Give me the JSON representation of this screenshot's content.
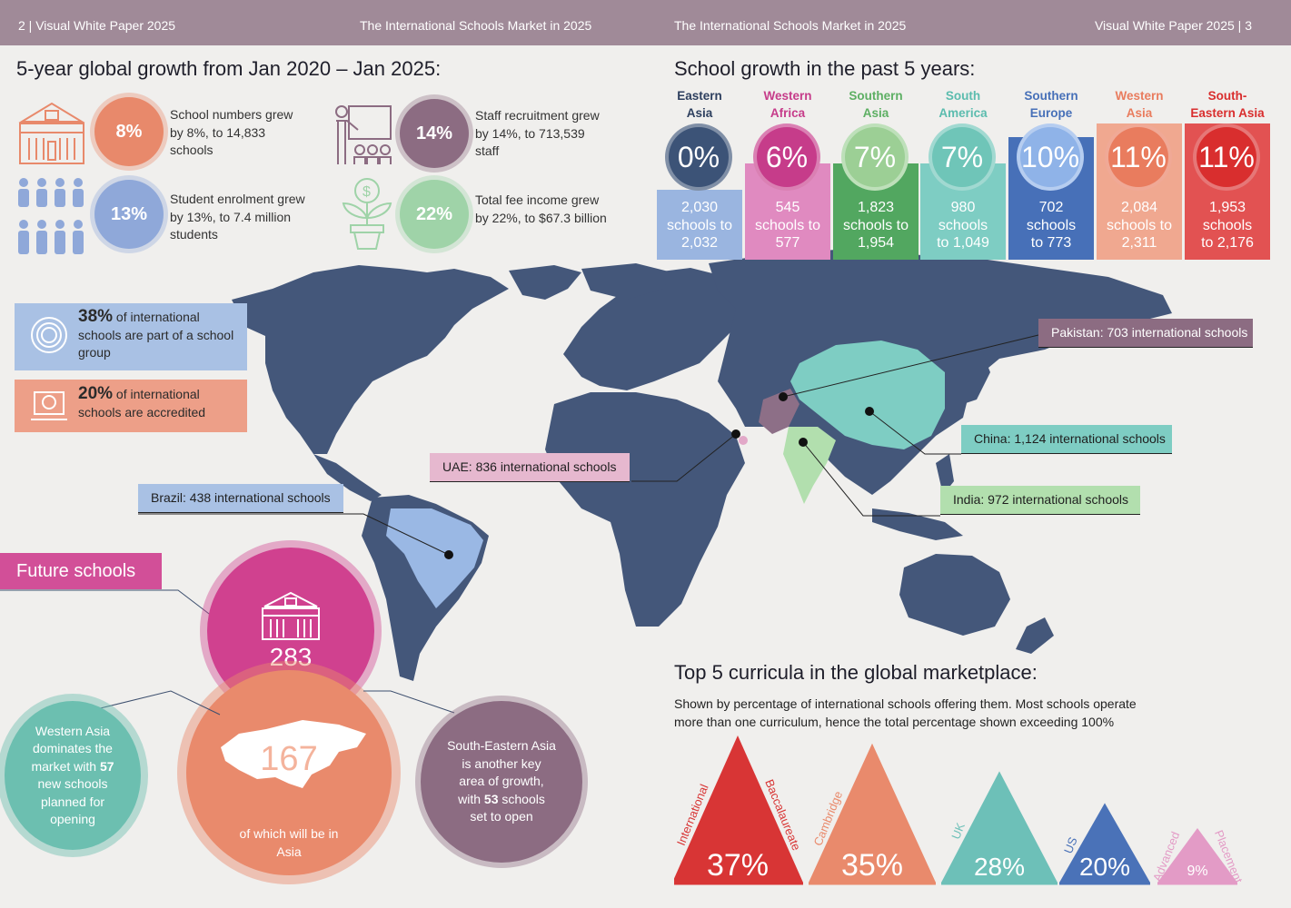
{
  "header": {
    "left": "2 | Visual White Paper 2025",
    "center_left": "The International Schools Market in 2025",
    "center_right": "The International Schools Market in 2025",
    "right": "Visual White Paper 2025 | 3"
  },
  "growth": {
    "title": "5-year global growth from Jan 2020 – Jan 2025:",
    "items": [
      {
        "icon": "school-building-icon",
        "pct": "8%",
        "text": "School numbers grew by 8%, to 14,833 schools",
        "color": "#e8896b"
      },
      {
        "icon": "students-group-icon",
        "pct": "13%",
        "text": "Student enrolment grew by 13%, to 7.4 million students",
        "color": "#8fa8d9"
      },
      {
        "icon": "teacher-board-icon",
        "pct": "14%",
        "text": "Staff recruitment grew by 14%, to 713,539 staff",
        "color": "#8c6c82"
      },
      {
        "icon": "money-plant-icon",
        "pct": "22%",
        "text": "Total fee income grew by 22%, to $67.3 billion",
        "color": "#9fd3a8"
      }
    ]
  },
  "regions_section": {
    "title": "School growth in the past 5 years:",
    "regions": [
      {
        "name_line1": "Eastern",
        "name_line2": "Asia",
        "pct": "0%",
        "l1": "2,030",
        "l2": "schools to",
        "l3": "2,032",
        "color": "#3c5377",
        "box": "#9ab5e0",
        "name_color": "#2d3f5e"
      },
      {
        "name_line1": "Western",
        "name_line2": "Africa",
        "pct": "6%",
        "l1": "545",
        "l2": "schools to",
        "l3": "577",
        "color": "#c63c8a",
        "box": "#e08ac0",
        "name_color": "#c63c8a"
      },
      {
        "name_line1": "Southern",
        "name_line2": "Asia",
        "pct": "7%",
        "l1": "1,823",
        "l2": "schools to",
        "l3": "1,954",
        "color": "#9ccf95",
        "box": "#52a760",
        "name_color": "#5daf63"
      },
      {
        "name_line1": "South",
        "name_line2": "America",
        "pct": "7%",
        "l1": "980",
        "l2": "schools",
        "l3": "to 1,049",
        "color": "#6fc5b8",
        "box": "#7ecdc3",
        "name_color": "#5bbcae"
      },
      {
        "name_line1": "Southern",
        "name_line2": "Europe",
        "pct": "10%",
        "l1": "702",
        "l2": "schools",
        "l3": "to 773",
        "color": "#8fb3e8",
        "box": "#4770b8",
        "name_color": "#4770b8"
      },
      {
        "name_line1": "Western",
        "name_line2": "Asia",
        "pct": "11%",
        "l1": "2,084",
        "l2": "schools to",
        "l3": "2,311",
        "color": "#e97c5e",
        "box": "#f0a890",
        "name_color": "#e97c5e"
      },
      {
        "name_line1": "South-",
        "name_line2": "Eastern Asia",
        "pct": "11%",
        "l1": "1,953",
        "l2": "schools",
        "l3": "to 2,176",
        "color": "#d92e2e",
        "box": "#e25252",
        "name_color": "#d92e2e"
      }
    ]
  },
  "facts": [
    {
      "icon": "lifebuoy-icon",
      "bold": "38%",
      "text": " of international schools are part of a school group",
      "color": "#a9c1e4"
    },
    {
      "icon": "award-laptop-icon",
      "bold": "20%",
      "text": " of international schools are accredited",
      "color": "#ed9f88"
    }
  ],
  "map_callouts": {
    "pakistan": "Pakistan: 703 international schools",
    "china": "China: 1,124 international schools",
    "uae": "UAE: 836 international schools",
    "india": "India: 972 international schools",
    "brazil": "Brazil: 438 international schools"
  },
  "future": {
    "title": "Future schools",
    "total": "283",
    "asia_count": "167",
    "asia_caption_1": "of which will be in",
    "asia_caption_2": "Asia",
    "western_asia": [
      "Western Asia",
      "dominates the",
      "market with ",
      "57",
      "new schools",
      "planned for",
      "opening"
    ],
    "se_asia": [
      "South-Eastern Asia",
      "is another key",
      "area of growth,",
      "with ",
      "53",
      " schools",
      "set to open"
    ]
  },
  "curricula": {
    "title": "Top 5 curricula in the global marketplace:",
    "subtitle_1": "Shown by percentage of international schools offering them. Most schools operate",
    "subtitle_2": "more than one curriculum, hence the total percentage shown exceeding 100%",
    "items": [
      {
        "name_a": "International",
        "name_b": "Baccalaureate",
        "pct": "37%",
        "value": 37,
        "color": "#d83535"
      },
      {
        "name_a": "Cambridge",
        "name_b": "",
        "pct": "35%",
        "value": 35,
        "color": "#e98a6c"
      },
      {
        "name_a": "UK",
        "name_b": "",
        "pct": "28%",
        "value": 28,
        "color": "#6dc0b8"
      },
      {
        "name_a": "US",
        "name_b": "",
        "pct": "20%",
        "value": 20,
        "color": "#4a72b8"
      },
      {
        "name_a": "Advanced",
        "name_b": "Placement",
        "pct": "9%",
        "value": 9,
        "color": "#e39bc6"
      }
    ]
  }
}
